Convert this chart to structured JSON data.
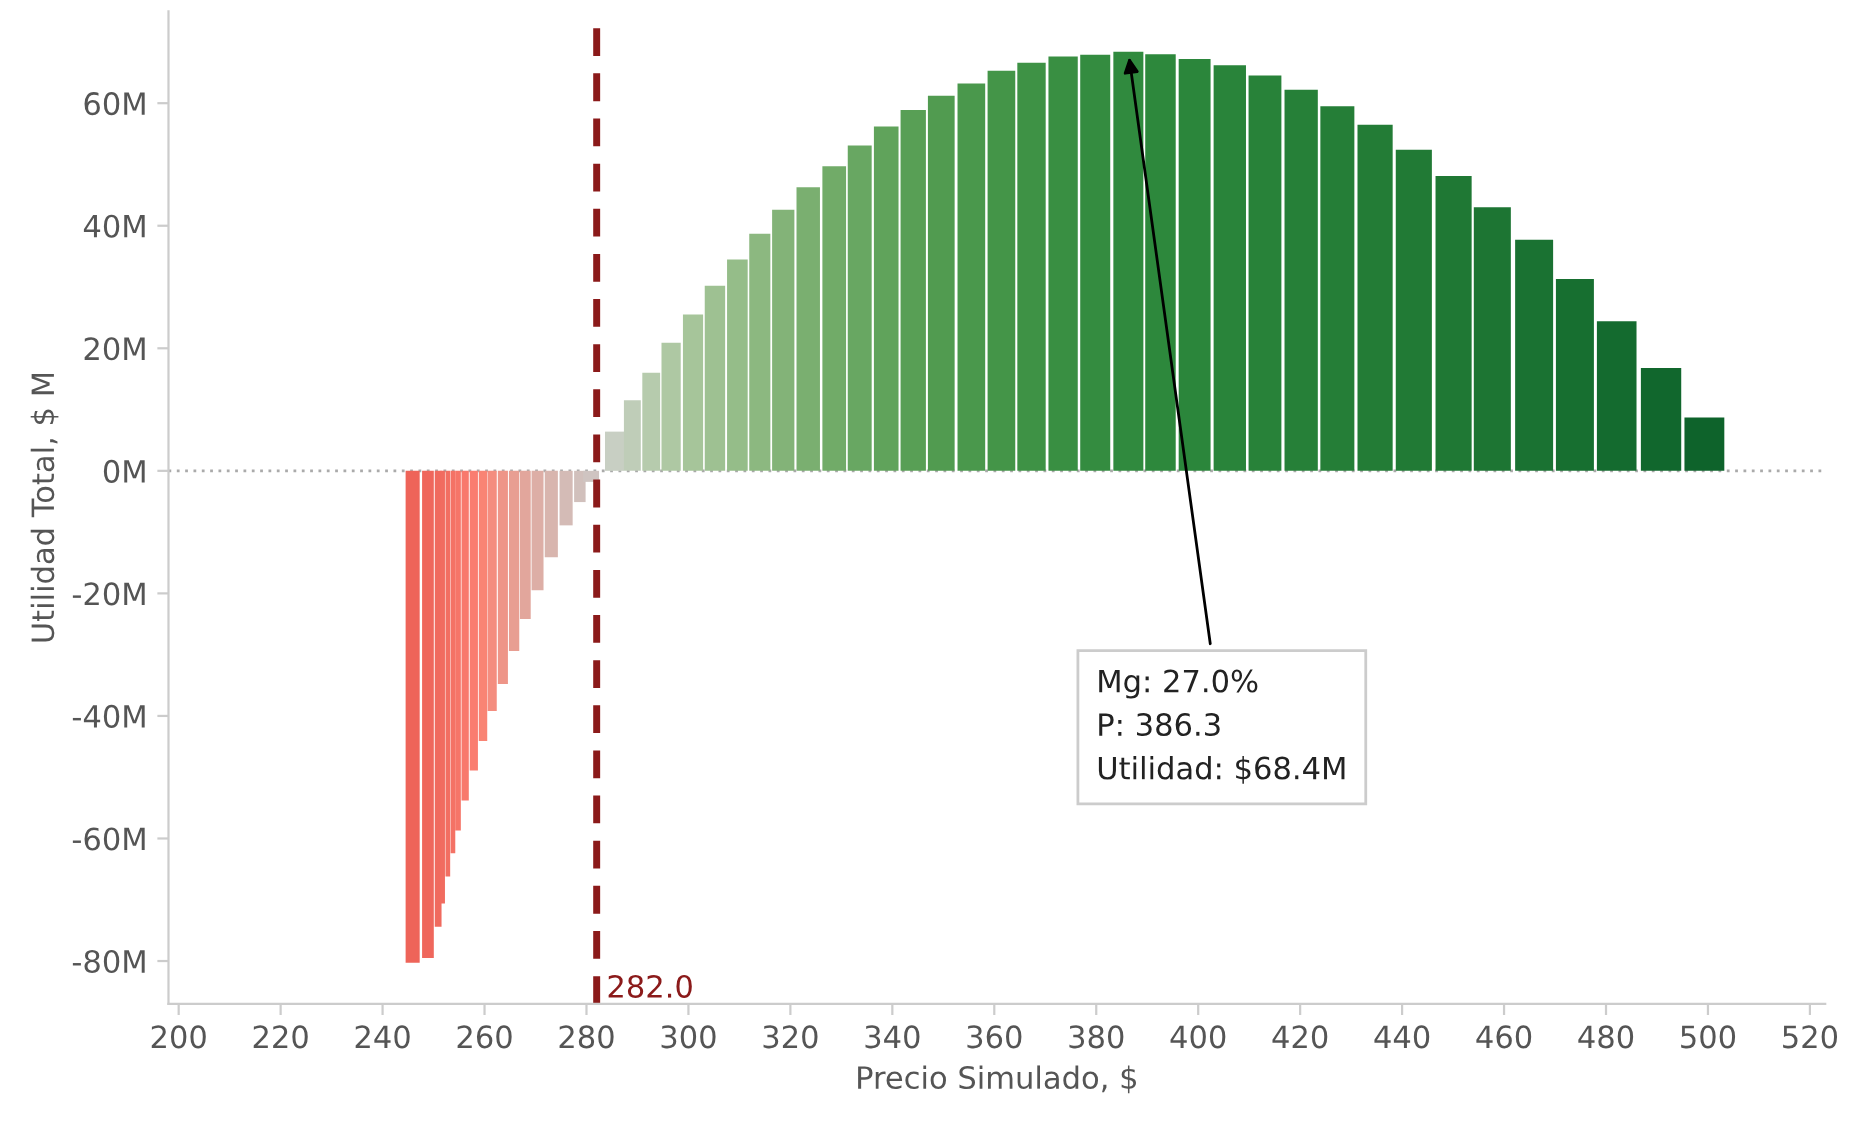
{
  "chart_data": {
    "type": "bar",
    "xlabel": "Precio Simulado, $",
    "ylabel": "Utilidad Total, $ M",
    "x": [
      245.9,
      248.9,
      250.9,
      251.8,
      252.8,
      253.8,
      254.8,
      256.2,
      257.9,
      259.7,
      261.5,
      263.6,
      265.8,
      268.0,
      270.4,
      273.1,
      276.0,
      278.7,
      280.9,
      285.5,
      289.0,
      292.7,
      296.6,
      300.9,
      305.2,
      309.6,
      314.0,
      318.6,
      323.5,
      328.6,
      333.6,
      338.8,
      344.1,
      349.6,
      355.5,
      361.4,
      367.3,
      373.5,
      379.8,
      386.3,
      392.6,
      399.3,
      406.2,
      413.1,
      420.2,
      427.3,
      434.7,
      442.3,
      450.1,
      457.7,
      465.9,
      473.9,
      482.1,
      490.8,
      499.3
    ],
    "values": [
      -80.3,
      -79.5,
      -74.4,
      -70.6,
      -66.2,
      -62.4,
      -58.7,
      -53.8,
      -48.9,
      -44.1,
      -39.2,
      -34.8,
      -29.4,
      -24.2,
      -19.5,
      -14.1,
      -8.9,
      -5.1,
      -1.8,
      6.4,
      11.5,
      16.0,
      20.9,
      25.5,
      30.2,
      34.5,
      38.7,
      42.6,
      46.3,
      49.7,
      53.1,
      56.2,
      58.9,
      61.2,
      63.2,
      65.3,
      66.6,
      67.6,
      67.9,
      68.4,
      68.0,
      67.2,
      66.2,
      64.5,
      62.2,
      59.5,
      56.5,
      52.4,
      48.1,
      43.0,
      37.7,
      31.3,
      24.4,
      16.8,
      8.7
    ],
    "colors": [
      "#ee6459",
      "#ef675c",
      "#f06a5e",
      "#f16c60",
      "#f26f62",
      "#f47265",
      "#f67568",
      "#f8796c",
      "#fa7d70",
      "#f98474",
      "#f48d7f",
      "#ee9588",
      "#e89e92",
      "#e2a69c",
      "#ddaea6",
      "#d8b5ae",
      "#d4bbb6",
      "#d1c0bc",
      "#cfc4c1",
      "#c8cfc3",
      "#bfcdb8",
      "#b6cbad",
      "#aec8a3",
      "#a6c59a",
      "#9ec192",
      "#95bd89",
      "#8cb880",
      "#83b378",
      "#7aaf70",
      "#71ab68",
      "#68a762",
      "#60a35b",
      "#589f55",
      "#519b50",
      "#4a984c",
      "#449548",
      "#3e9245",
      "#398f42",
      "#348c40",
      "#308a3e",
      "#2d883c",
      "#2b863b",
      "#29843a",
      "#288239",
      "#268038",
      "#257e37",
      "#237c36",
      "#217a35",
      "#1f7834",
      "#1d7533",
      "#1a7232",
      "#176f30",
      "#146b2f",
      "#11672d",
      "#0e632b"
    ],
    "xlim": [
      198,
      523
    ],
    "xticks": [
      200,
      220,
      240,
      260,
      280,
      300,
      320,
      340,
      360,
      380,
      400,
      420,
      440,
      460,
      480,
      500,
      520
    ],
    "ylim": [
      -87,
      75
    ],
    "yticks": [
      {
        "value": -80,
        "label": "-80M"
      },
      {
        "value": -60,
        "label": "-60M"
      },
      {
        "value": -40,
        "label": "-40M"
      },
      {
        "value": -20,
        "label": "-20M"
      },
      {
        "value": 0,
        "label": "0M"
      },
      {
        "value": 20,
        "label": "20M"
      },
      {
        "value": 40,
        "label": "40M"
      },
      {
        "value": 60,
        "label": "60M"
      }
    ],
    "ref_lines": [
      {
        "axis": "x",
        "value": 282.0,
        "label": "282.0",
        "color": "#8b1a1a",
        "line_style": "dashed"
      },
      {
        "axis": "y",
        "value": 0,
        "color": "#aaaaaa",
        "line_style": "dotted"
      }
    ],
    "annotations": [
      {
        "text": "Mg: 27.0%\nP: 386.3\nUtilidad: $68.4M",
        "x": 386.3,
        "y": 68.4
      }
    ],
    "grid": false
  }
}
